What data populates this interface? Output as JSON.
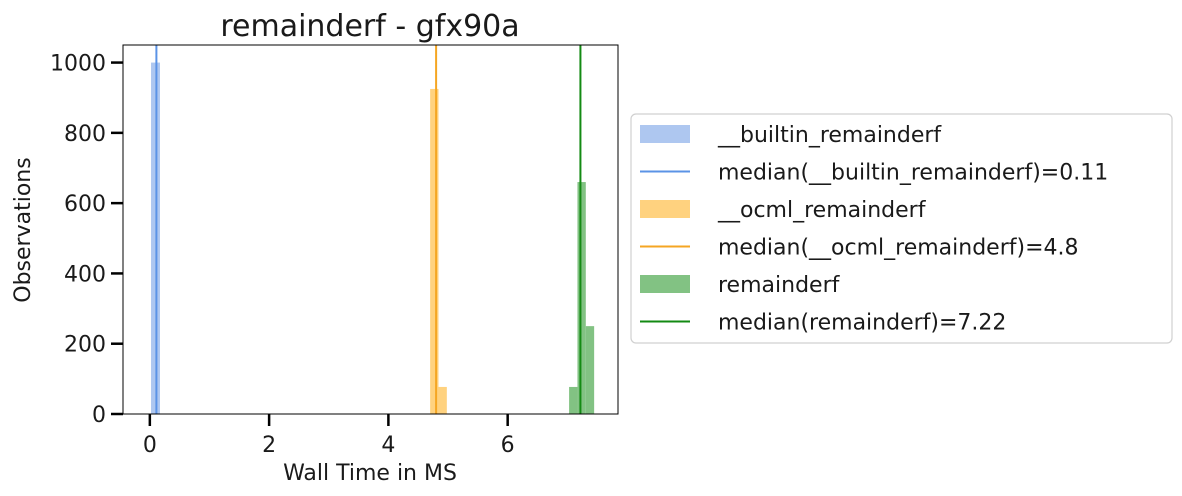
{
  "chart_data": {
    "type": "bar",
    "title": "remainderf - gfx90a",
    "xlabel": "Wall Time in MS",
    "ylabel": "Observations",
    "xlim": [
      -0.45,
      7.85
    ],
    "ylim": [
      0,
      1050
    ],
    "xticks": [
      0,
      2,
      4,
      6
    ],
    "yticks": [
      0,
      200,
      400,
      600,
      800,
      1000
    ],
    "grid": false,
    "legend_position": "right, outside plot",
    "series": [
      {
        "name": "__builtin_remainderf",
        "color": "#aec7f0",
        "opacity": 1,
        "bins": [
          {
            "x0": 0.02,
            "x1": 0.17,
            "count": 1000
          },
          {
            "x0": 1.58,
            "x1": 1.73,
            "count": 1
          }
        ],
        "median_label": "median(__builtin_remainderf)=0.11",
        "median": 0.11,
        "median_color": "#5b93e6"
      },
      {
        "name": "__ocml_remainderf",
        "color": "#ffd27f",
        "opacity": 1,
        "bins": [
          {
            "x0": 4.7,
            "x1": 4.84,
            "count": 925
          },
          {
            "x0": 4.84,
            "x1": 4.98,
            "count": 77
          }
        ],
        "median_label": "median(__ocml_remainderf)=4.8",
        "median": 4.8,
        "median_color": "#f5a623"
      },
      {
        "name": "remainderf",
        "color": "#82c283",
        "opacity": 1,
        "bins": [
          {
            "x0": 7.03,
            "x1": 7.17,
            "count": 77
          },
          {
            "x0": 7.17,
            "x1": 7.31,
            "count": 660
          },
          {
            "x0": 7.31,
            "x1": 7.45,
            "count": 250
          }
        ],
        "median_label": "median(remainderf)=7.22",
        "median": 7.22,
        "median_color": "#138a13"
      }
    ]
  }
}
